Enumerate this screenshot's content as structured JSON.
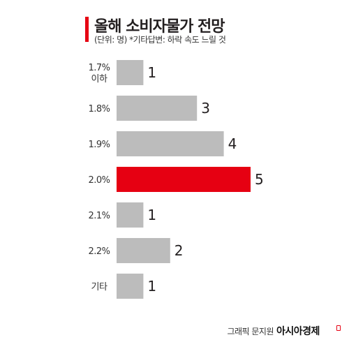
{
  "header": {
    "title": "올해 소비자물가 전망",
    "subtitle": "(단위: 명) *기타답변: 하락 속도 느릴 것"
  },
  "footer": {
    "credit": "그래픽 문지원",
    "brand": "아시아경제"
  },
  "colors": {
    "bar": "#bcbcbc",
    "highlight": "#e60012",
    "accent": "#e60012"
  },
  "chart_data": {
    "type": "bar",
    "orientation": "horizontal",
    "categories": [
      [
        "1.7%",
        "이하"
      ],
      [
        "1.8%"
      ],
      [
        "1.9%"
      ],
      [
        "2.0%"
      ],
      [
        "2.1%"
      ],
      [
        "2.2%"
      ],
      [
        "기타"
      ]
    ],
    "values": [
      1,
      3,
      4,
      5,
      1,
      2,
      1
    ],
    "highlight_index": 3,
    "title": "올해 소비자물가 전망",
    "subtitle": "(단위: 명) *기타답변: 하락 속도 느릴 것",
    "xlim": [
      0,
      5
    ],
    "grid": false
  }
}
